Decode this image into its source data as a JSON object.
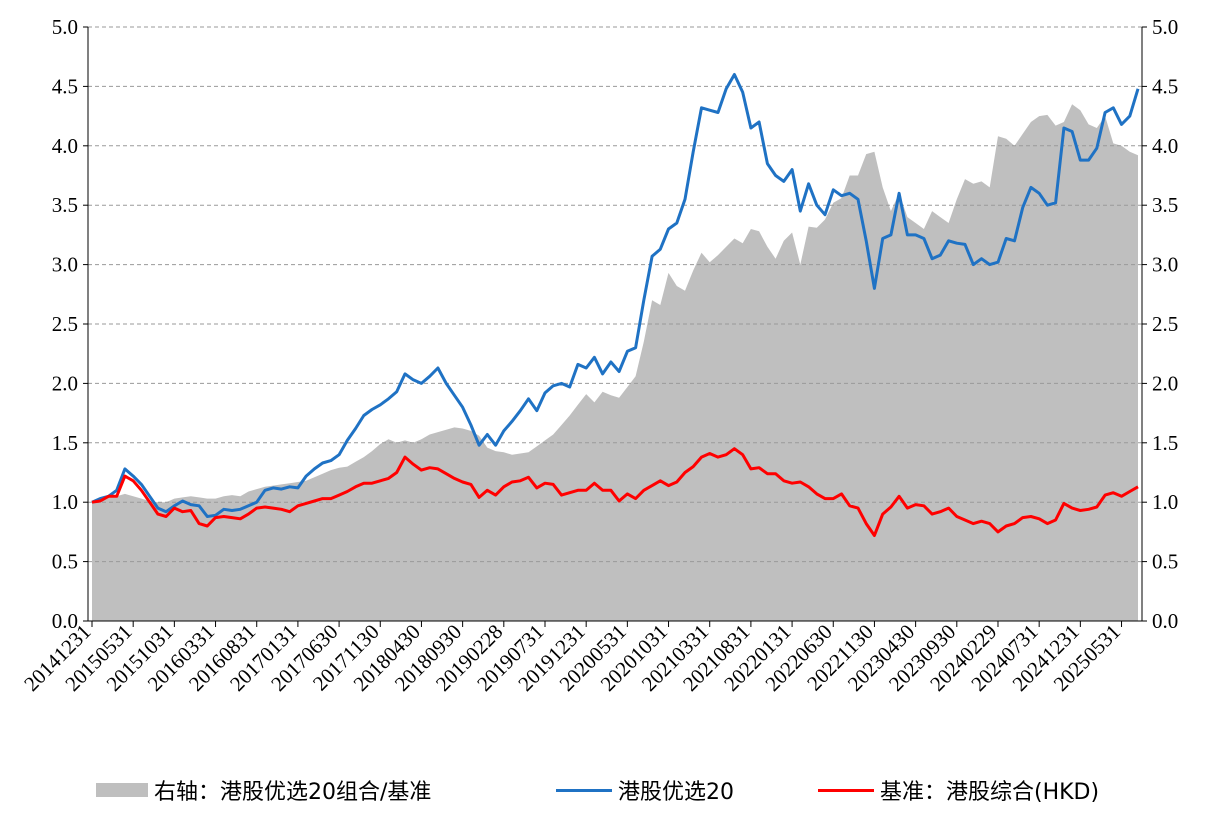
{
  "chart_data": {
    "type": "line",
    "title": "",
    "left_axis": {
      "ylim": [
        0,
        5.0
      ],
      "ticks": [
        "0.0",
        "0.5",
        "1.0",
        "1.5",
        "2.0",
        "2.5",
        "3.0",
        "3.5",
        "4.0",
        "4.5",
        "5.0"
      ]
    },
    "right_axis": {
      "ylim": [
        0,
        5.0
      ],
      "ticks": [
        "0.0",
        "0.5",
        "1.0",
        "1.5",
        "2.0",
        "2.5",
        "3.0",
        "3.5",
        "4.0",
        "4.5",
        "5.0"
      ]
    },
    "grid": "horizontal dashed",
    "legend_position": "bottom",
    "x_tick_labels": [
      "20141231",
      "20150531",
      "20151031",
      "20160331",
      "20160831",
      "20170131",
      "20170630",
      "20171130",
      "20180430",
      "20180930",
      "20190228",
      "20190731",
      "20191231",
      "20200531",
      "20201031",
      "20210331",
      "20210831",
      "20220131",
      "20220630",
      "20221130",
      "20230430",
      "20230930",
      "20240229",
      "20240731",
      "20241231",
      "20250531"
    ],
    "x": [
      "2014-12",
      "2015-01",
      "2015-02",
      "2015-03",
      "2015-04",
      "2015-05",
      "2015-06",
      "2015-07",
      "2015-08",
      "2015-09",
      "2015-10",
      "2015-11",
      "2015-12",
      "2016-01",
      "2016-02",
      "2016-03",
      "2016-04",
      "2016-05",
      "2016-06",
      "2016-07",
      "2016-08",
      "2016-09",
      "2016-10",
      "2016-11",
      "2016-12",
      "2017-01",
      "2017-02",
      "2017-03",
      "2017-04",
      "2017-05",
      "2017-06",
      "2017-07",
      "2017-08",
      "2017-09",
      "2017-10",
      "2017-11",
      "2017-12",
      "2018-01",
      "2018-02",
      "2018-03",
      "2018-04",
      "2018-05",
      "2018-06",
      "2018-07",
      "2018-08",
      "2018-09",
      "2018-10",
      "2018-11",
      "2018-12",
      "2019-01",
      "2019-02",
      "2019-03",
      "2019-04",
      "2019-05",
      "2019-06",
      "2019-07",
      "2019-08",
      "2019-09",
      "2019-10",
      "2019-11",
      "2019-12",
      "2020-01",
      "2020-02",
      "2020-03",
      "2020-04",
      "2020-05",
      "2020-06",
      "2020-07",
      "2020-08",
      "2020-09",
      "2020-10",
      "2020-11",
      "2020-12",
      "2021-01",
      "2021-02",
      "2021-03",
      "2021-04",
      "2021-05",
      "2021-06",
      "2021-07",
      "2021-08",
      "2021-09",
      "2021-10",
      "2021-11",
      "2021-12",
      "2022-01",
      "2022-02",
      "2022-03",
      "2022-04",
      "2022-05",
      "2022-06",
      "2022-07",
      "2022-08",
      "2022-09",
      "2022-10",
      "2022-11",
      "2022-12",
      "2023-01",
      "2023-02",
      "2023-03",
      "2023-04",
      "2023-05",
      "2023-06",
      "2023-07",
      "2023-08",
      "2023-09",
      "2023-10",
      "2023-11",
      "2023-12",
      "2024-01",
      "2024-02",
      "2024-03",
      "2024-04",
      "2024-05",
      "2024-06",
      "2024-07",
      "2024-08",
      "2024-09",
      "2024-10",
      "2024-11",
      "2024-12",
      "2025-01",
      "2025-02",
      "2025-03",
      "2025-04",
      "2025-05",
      "2025-06",
      "2025-07"
    ],
    "series": [
      {
        "name": "右轴：港股优选20组合/基准",
        "kind": "area",
        "axis": "right",
        "color": "#bfbfbf",
        "values": [
          1.0,
          1.02,
          1.04,
          1.05,
          1.07,
          1.05,
          1.03,
          1.01,
          1.0,
          1.0,
          1.03,
          1.04,
          1.05,
          1.04,
          1.03,
          1.03,
          1.05,
          1.06,
          1.05,
          1.09,
          1.11,
          1.13,
          1.14,
          1.15,
          1.16,
          1.17,
          1.18,
          1.21,
          1.24,
          1.27,
          1.29,
          1.3,
          1.34,
          1.38,
          1.43,
          1.49,
          1.53,
          1.5,
          1.52,
          1.5,
          1.53,
          1.57,
          1.59,
          1.61,
          1.63,
          1.62,
          1.6,
          1.56,
          1.46,
          1.43,
          1.42,
          1.4,
          1.41,
          1.42,
          1.47,
          1.52,
          1.57,
          1.65,
          1.73,
          1.82,
          1.91,
          1.84,
          1.93,
          1.9,
          1.88,
          1.97,
          2.06,
          2.35,
          2.7,
          2.66,
          2.93,
          2.82,
          2.78,
          2.95,
          3.1,
          3.02,
          3.08,
          3.15,
          3.22,
          3.18,
          3.3,
          3.28,
          3.15,
          3.05,
          3.2,
          3.27,
          3.0,
          3.32,
          3.31,
          3.38,
          3.52,
          3.56,
          3.75,
          3.75,
          3.93,
          3.95,
          3.65,
          3.45,
          3.6,
          3.4,
          3.35,
          3.3,
          3.45,
          3.4,
          3.35,
          3.55,
          3.72,
          3.68,
          3.7,
          3.65,
          4.08,
          4.06,
          4.0,
          4.1,
          4.2,
          4.25,
          4.26,
          4.17,
          4.2,
          4.35,
          4.3,
          4.18,
          4.15,
          4.25,
          4.02,
          4.0,
          3.95,
          3.92
        ]
      },
      {
        "name": "港股优选20",
        "kind": "line",
        "axis": "left",
        "color": "#1f72c4",
        "values": [
          1.0,
          1.03,
          1.05,
          1.1,
          1.28,
          1.22,
          1.15,
          1.05,
          0.95,
          0.92,
          0.97,
          1.01,
          0.98,
          0.97,
          0.88,
          0.89,
          0.94,
          0.93,
          0.94,
          0.97,
          1.0,
          1.1,
          1.12,
          1.11,
          1.13,
          1.12,
          1.22,
          1.28,
          1.33,
          1.35,
          1.4,
          1.52,
          1.62,
          1.73,
          1.78,
          1.82,
          1.87,
          1.93,
          2.08,
          2.03,
          2.0,
          2.06,
          2.13,
          2.0,
          1.9,
          1.8,
          1.65,
          1.48,
          1.57,
          1.48,
          1.6,
          1.68,
          1.77,
          1.87,
          1.77,
          1.92,
          1.98,
          2.0,
          1.97,
          2.16,
          2.13,
          2.22,
          2.08,
          2.18,
          2.1,
          2.27,
          2.3,
          2.7,
          3.07,
          3.13,
          3.3,
          3.35,
          3.55,
          3.95,
          4.32,
          4.3,
          4.28,
          4.48,
          4.6,
          4.45,
          4.15,
          4.2,
          3.85,
          3.75,
          3.7,
          3.8,
          3.45,
          3.68,
          3.5,
          3.42,
          3.63,
          3.58,
          3.6,
          3.55,
          3.2,
          2.8,
          3.22,
          3.25,
          3.6,
          3.25,
          3.25,
          3.22,
          3.05,
          3.08,
          3.2,
          3.18,
          3.17,
          3.0,
          3.05,
          3.0,
          3.02,
          3.22,
          3.2,
          3.48,
          3.65,
          3.6,
          3.5,
          3.52,
          4.15,
          4.12,
          3.88,
          3.88,
          3.98,
          4.28,
          4.32,
          4.18,
          4.25,
          4.48
        ]
      },
      {
        "name": "基准：港股综合(HKD)",
        "kind": "line",
        "axis": "left",
        "color": "#ff0000",
        "values": [
          1.0,
          1.01,
          1.05,
          1.05,
          1.22,
          1.18,
          1.1,
          1.0,
          0.9,
          0.88,
          0.95,
          0.92,
          0.93,
          0.82,
          0.8,
          0.87,
          0.88,
          0.87,
          0.86,
          0.9,
          0.95,
          0.96,
          0.95,
          0.94,
          0.92,
          0.97,
          0.99,
          1.01,
          1.03,
          1.03,
          1.06,
          1.09,
          1.13,
          1.16,
          1.16,
          1.18,
          1.2,
          1.25,
          1.38,
          1.32,
          1.27,
          1.29,
          1.28,
          1.24,
          1.2,
          1.17,
          1.15,
          1.04,
          1.1,
          1.06,
          1.13,
          1.17,
          1.18,
          1.21,
          1.12,
          1.16,
          1.15,
          1.06,
          1.08,
          1.1,
          1.1,
          1.16,
          1.1,
          1.1,
          1.01,
          1.07,
          1.03,
          1.1,
          1.14,
          1.18,
          1.14,
          1.17,
          1.25,
          1.3,
          1.38,
          1.41,
          1.38,
          1.4,
          1.45,
          1.4,
          1.28,
          1.29,
          1.24,
          1.24,
          1.18,
          1.16,
          1.17,
          1.13,
          1.07,
          1.03,
          1.03,
          1.07,
          0.97,
          0.95,
          0.82,
          0.72,
          0.9,
          0.96,
          1.05,
          0.95,
          0.98,
          0.97,
          0.9,
          0.92,
          0.95,
          0.88,
          0.85,
          0.82,
          0.84,
          0.82,
          0.75,
          0.8,
          0.82,
          0.87,
          0.88,
          0.86,
          0.82,
          0.85,
          0.99,
          0.95,
          0.93,
          0.94,
          0.96,
          1.06,
          1.08,
          1.05,
          1.09,
          1.13
        ]
      }
    ]
  }
}
